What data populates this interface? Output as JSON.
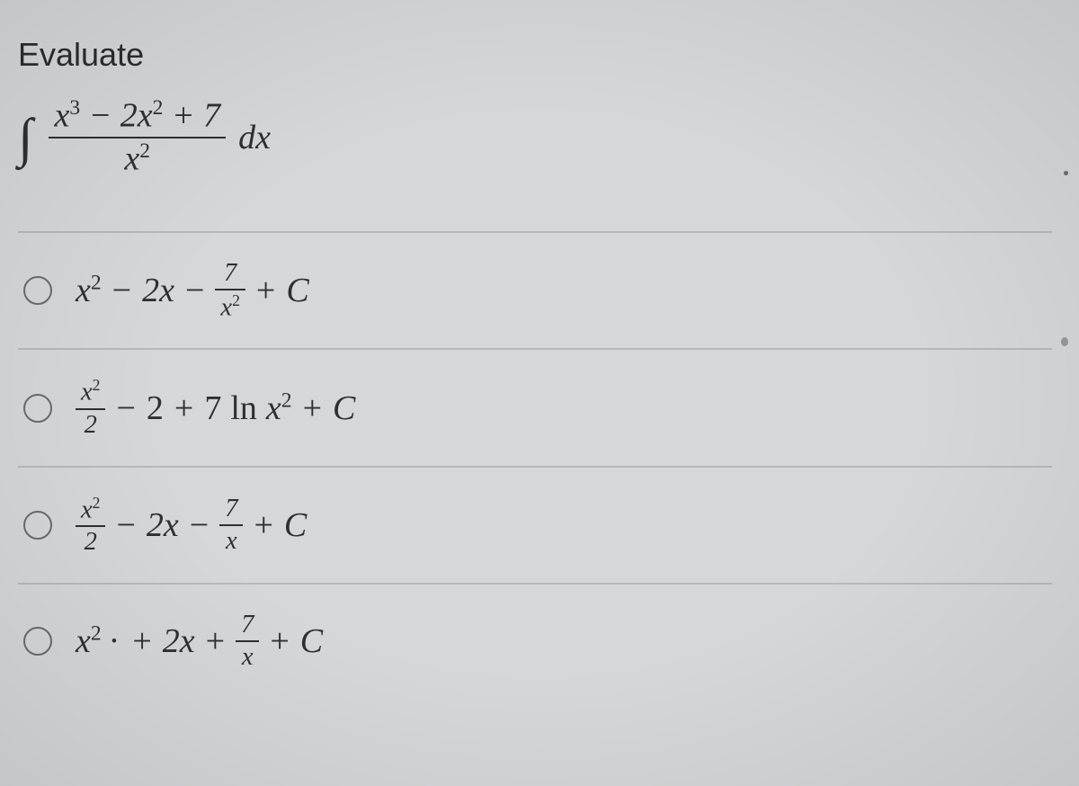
{
  "colors": {
    "background": "#d5d7d8",
    "text": "#2f2f30",
    "divider": "#b7b8b9",
    "radio_border": "#6a6b6c"
  },
  "typography": {
    "prompt_font": "sans-serif",
    "prompt_size_pt": 27,
    "math_font": "serif-italic",
    "math_size_pt": 28
  },
  "question": {
    "prompt": "Evaluate",
    "integral": {
      "symbol": "∫",
      "numerator": "x³ − 2x² + 7",
      "denominator": "x²",
      "differential": "dx"
    }
  },
  "choices": [
    {
      "id": "opt1",
      "display": "x² − 2x − 7 / x² + C",
      "parts": {
        "lead": "x",
        "lead_sup": "2",
        "mid": " − 2x − ",
        "frac_num": "7",
        "frac_den": "x²",
        "tail": " + C"
      }
    },
    {
      "id": "opt2",
      "display": "x²/2 − 2 + 7 ln x² + C",
      "parts": {
        "frac1_num": "x²",
        "frac1_den": "2",
        "mid": " − 2 + 7 ln x",
        "mid_sup": "2",
        "tail": " + C"
      }
    },
    {
      "id": "opt3",
      "display": "x²/2 − 2x − 7/x + C",
      "parts": {
        "frac1_num": "x²",
        "frac1_den": "2",
        "mid": " − 2x − ",
        "frac2_num": "7",
        "frac2_den": "x",
        "tail": " + C"
      }
    },
    {
      "id": "opt4",
      "display": "x² · + 2x + 7/x + C",
      "parts": {
        "lead": "x",
        "lead_sup": "2",
        "dot": " · ",
        "mid": "+ 2x + ",
        "frac_num": "7",
        "frac_den": "x",
        "tail": " + C"
      }
    }
  ]
}
